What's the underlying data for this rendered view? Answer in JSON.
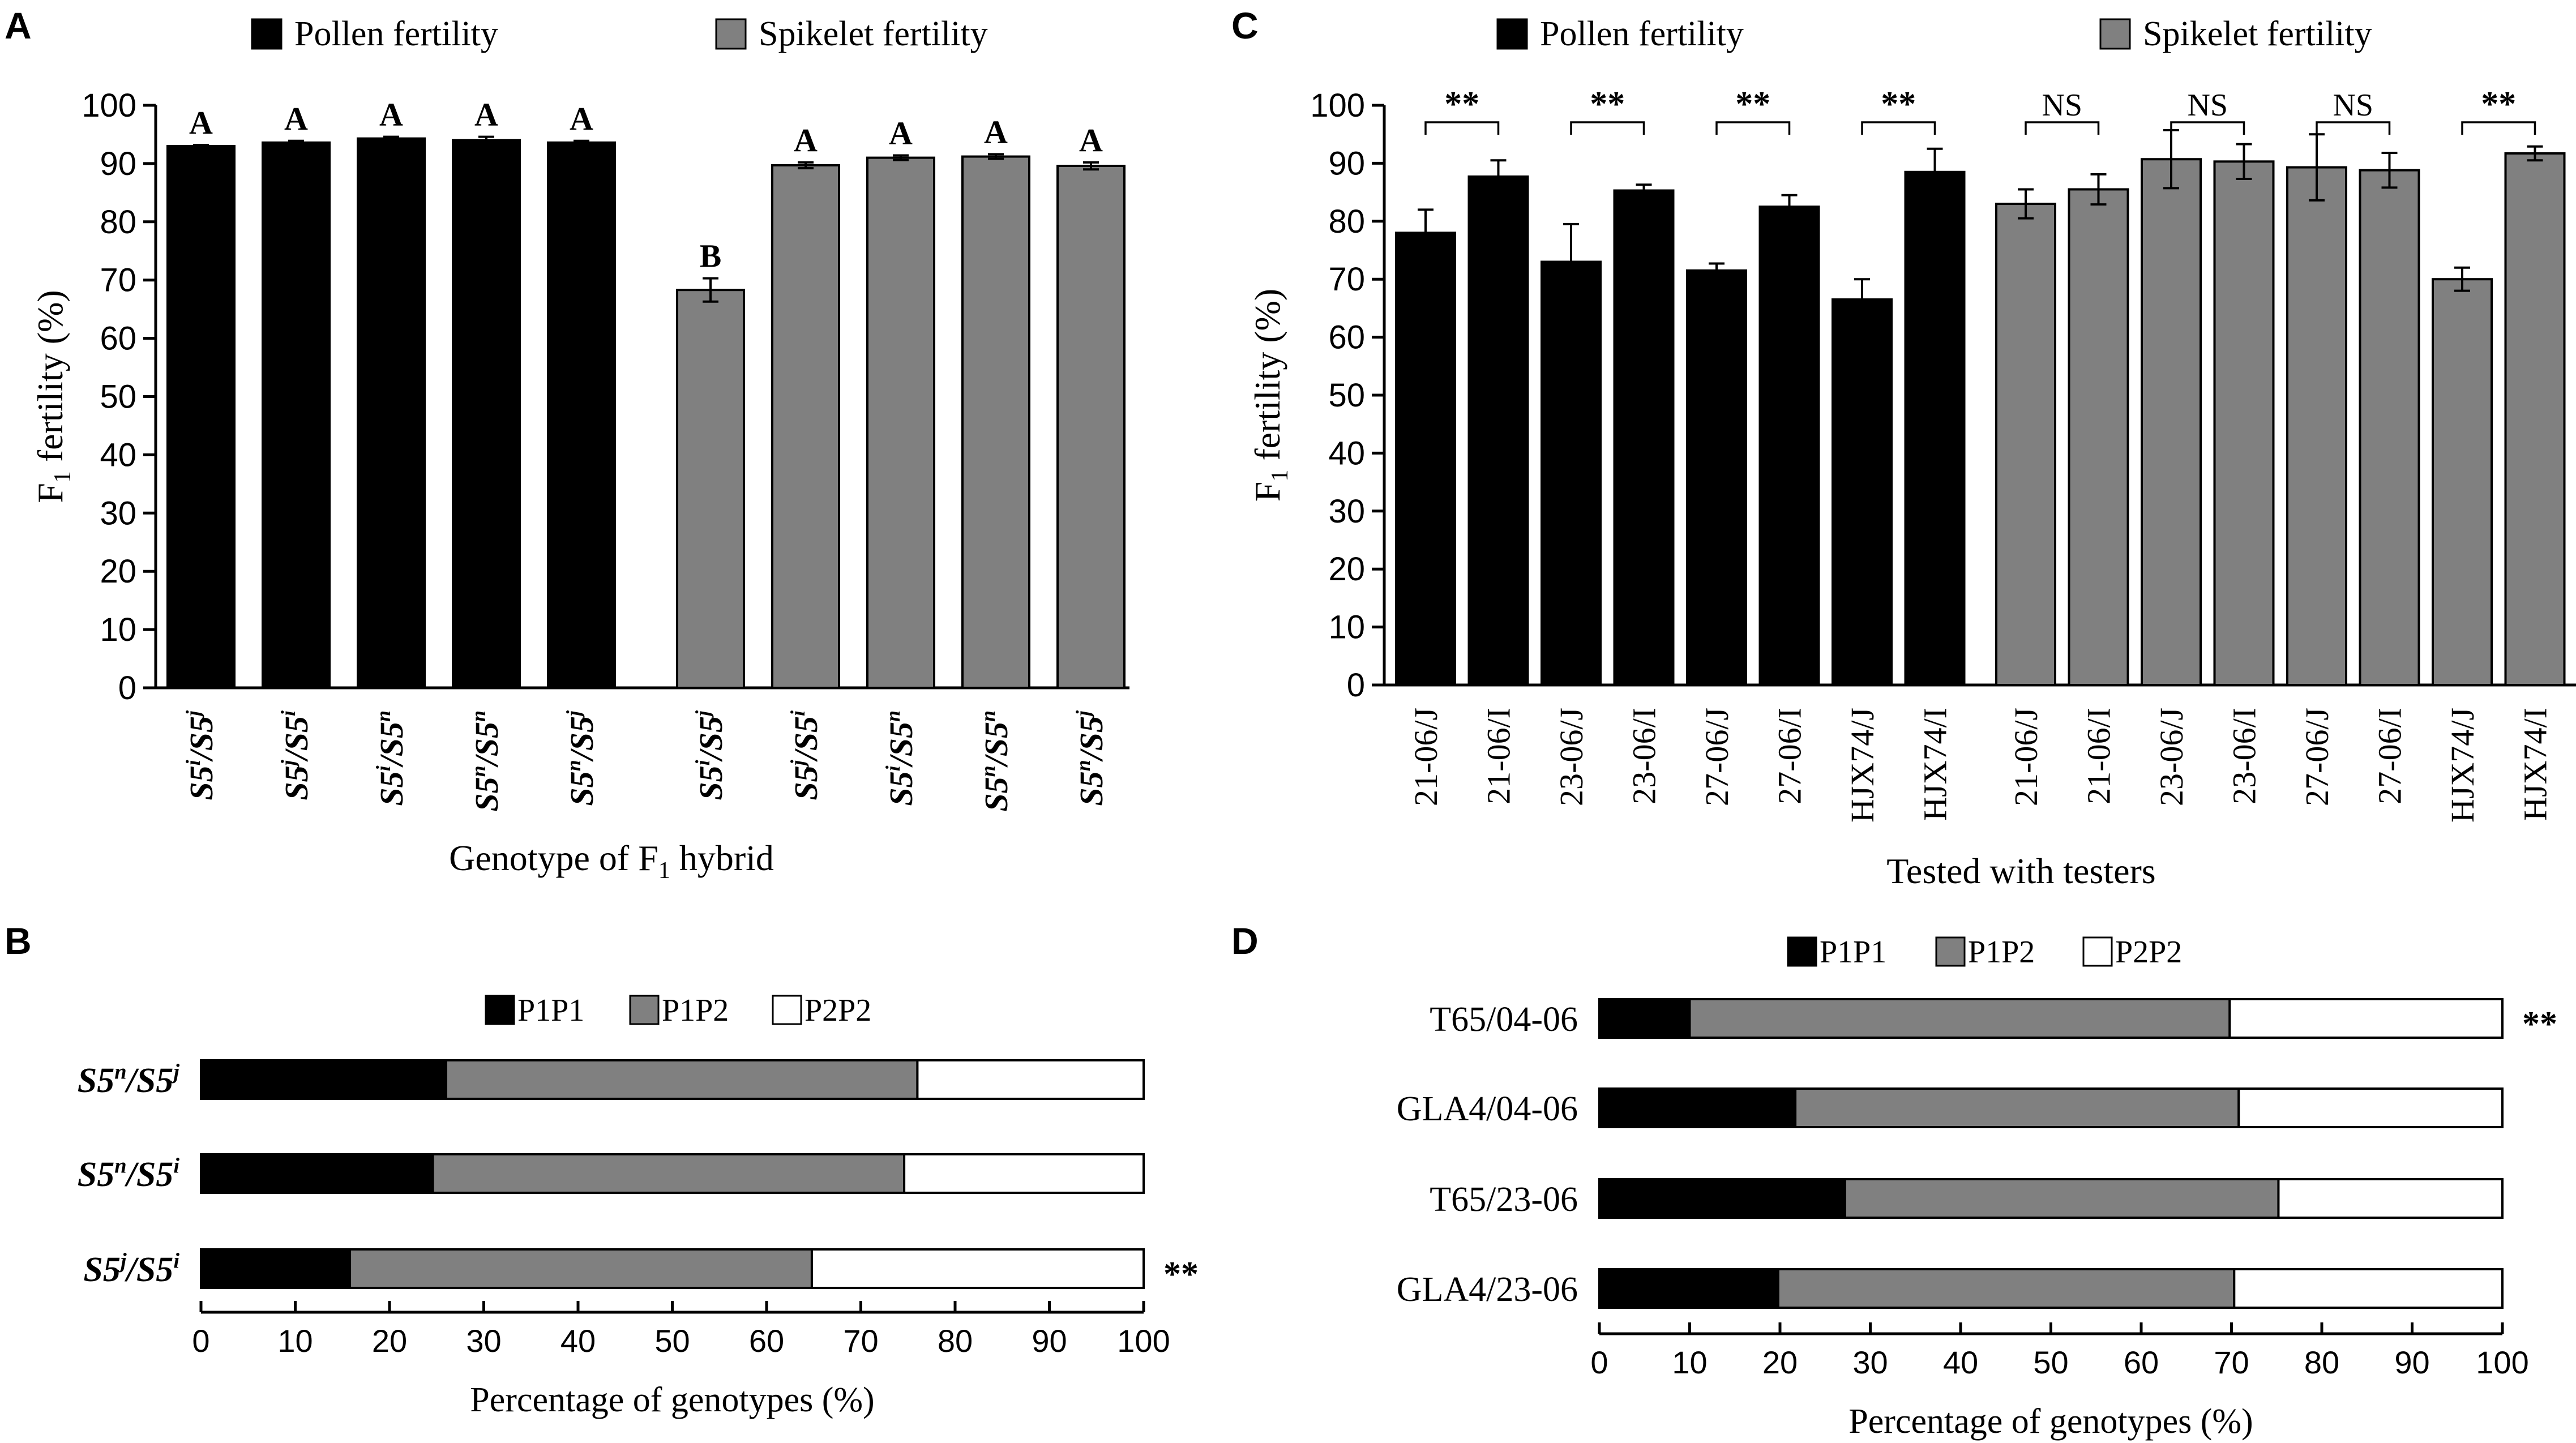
{
  "chart_data": [
    {
      "panel": "A",
      "type": "bar",
      "ylabel": "F1 fertility (%)",
      "ylabel_main": "F",
      "ylabel_sub": "1",
      "ylabel_rest": " fertility (%)",
      "xlabel": "Genotype of F1 hybrid",
      "xlabel_main": "Genotype of F",
      "xlabel_sub": "1",
      "xlabel_rest": " hybrid",
      "ylim": [
        0,
        100
      ],
      "yticks": [
        0,
        10,
        20,
        30,
        40,
        50,
        60,
        70,
        80,
        90,
        100
      ],
      "legend": [
        {
          "label": "Pollen fertility",
          "color": "#000000"
        },
        {
          "label": "Spikelet fertility",
          "color": "#808080"
        }
      ],
      "groups": [
        {
          "name": "Pollen fertility",
          "color": "#000000",
          "categories": [
            {
              "a": "S5",
              "as": "i",
              "b": "/S5",
              "bs": "j"
            },
            {
              "a": "S5",
              "as": "j",
              "b": "/S5",
              "bs": "i"
            },
            {
              "a": "S5",
              "as": "i",
              "b": "/S5",
              "bs": "n"
            },
            {
              "a": "S5",
              "as": "n",
              "b": "/S5",
              "bs": "n"
            },
            {
              "a": "S5",
              "as": "n",
              "b": "/S5",
              "bs": "j"
            }
          ],
          "values": [
            93.0,
            93.6,
            94.3,
            94.0,
            93.6
          ],
          "errors": [
            0.2,
            0.3,
            0.3,
            0.6,
            0.3
          ],
          "letters": [
            "A",
            "A",
            "A",
            "A",
            "A"
          ]
        },
        {
          "name": "Spikelet fertility",
          "color": "#808080",
          "categories": [
            {
              "a": "S5",
              "as": "i",
              "b": "/S5",
              "bs": "j"
            },
            {
              "a": "S5",
              "as": "j",
              "b": "/S5",
              "bs": "i"
            },
            {
              "a": "S5",
              "as": "i",
              "b": "/S5",
              "bs": "n"
            },
            {
              "a": "S5",
              "as": "n",
              "b": "/S5",
              "bs": "n"
            },
            {
              "a": "S5",
              "as": "n",
              "b": "/S5",
              "bs": "j"
            }
          ],
          "values": [
            68.3,
            89.7,
            91.0,
            91.2,
            89.6
          ],
          "errors": [
            2.0,
            0.5,
            0.4,
            0.4,
            0.6
          ],
          "letters": [
            "B",
            "A",
            "A",
            "A",
            "A"
          ]
        }
      ]
    },
    {
      "panel": "B",
      "type": "bar",
      "orientation": "horizontal-stacked",
      "xlabel": "Percentage of genotypes (%)",
      "xlim": [
        0,
        100
      ],
      "xticks": [
        0,
        10,
        20,
        30,
        40,
        50,
        60,
        70,
        80,
        90,
        100
      ],
      "legend": [
        {
          "label": "P1P1",
          "color": "#000000"
        },
        {
          "label": "P1P2",
          "color": "#808080"
        },
        {
          "label": "P2P2",
          "color": "#ffffff"
        }
      ],
      "rows": [
        {
          "a": "S5",
          "as": "n",
          "b": "/S5",
          "bs": "j",
          "values": [
            26.0,
            50.0,
            24.0
          ],
          "sig": ""
        },
        {
          "a": "S5",
          "as": "n",
          "b": "/S5",
          "bs": "i",
          "values": [
            24.6,
            50.0,
            25.4
          ],
          "sig": ""
        },
        {
          "a": "S5",
          "as": "j",
          "b": "/S5",
          "bs": "i",
          "values": [
            15.8,
            49.0,
            35.2
          ],
          "sig": "**"
        }
      ]
    },
    {
      "panel": "C",
      "type": "bar",
      "ylabel": "F1 fertility (%)",
      "ylabel_main": "F",
      "ylabel_sub": "1",
      "ylabel_rest": " fertility (%)",
      "xlabel": "Tested with testers",
      "ylim": [
        0,
        100
      ],
      "yticks": [
        0,
        10,
        20,
        30,
        40,
        50,
        60,
        70,
        80,
        90,
        100
      ],
      "legend": [
        {
          "label": "Pollen fertility",
          "color": "#000000"
        },
        {
          "label": "Spikelet fertility",
          "color": "#808080"
        }
      ],
      "groups": [
        {
          "name": "Pollen fertility",
          "color": "#000000",
          "categories": [
            "21-06/J",
            "21-06/I",
            "23-06/J",
            "23-06/I",
            "27-06/J",
            "27-06/I",
            "HJX74/J",
            "HJX74/I"
          ],
          "values": [
            78.0,
            87.7,
            73.0,
            85.3,
            71.5,
            82.5,
            66.5,
            88.5
          ],
          "errors": [
            4.0,
            2.8,
            6.5,
            1.0,
            1.2,
            2.0,
            3.5,
            4.0
          ],
          "pair_labels": [
            "**",
            "**",
            "**",
            "**"
          ]
        },
        {
          "name": "Spikelet fertility",
          "color": "#808080",
          "categories": [
            "21-06/J",
            "21-06/I",
            "23-06/J",
            "23-06/I",
            "27-06/J",
            "27-06/I",
            "HJX74/J",
            "HJX74/I"
          ],
          "values": [
            83.0,
            85.5,
            90.7,
            90.3,
            89.3,
            88.8,
            70.0,
            91.7
          ],
          "errors": [
            2.5,
            2.6,
            5.0,
            3.0,
            5.7,
            3.0,
            2.0,
            1.2
          ],
          "pair_labels": [
            "NS",
            "NS",
            "NS",
            "**"
          ]
        }
      ]
    },
    {
      "panel": "D",
      "type": "bar",
      "orientation": "horizontal-stacked",
      "xlabel": "Percentage of genotypes (%)",
      "xlim": [
        0,
        100
      ],
      "xticks": [
        0,
        10,
        20,
        30,
        40,
        50,
        60,
        70,
        80,
        90,
        100
      ],
      "legend": [
        {
          "label": "P1P1",
          "color": "#000000"
        },
        {
          "label": "P1P2",
          "color": "#808080"
        },
        {
          "label": "P2P2",
          "color": "#ffffff"
        }
      ],
      "rows": [
        {
          "label": "T65/04-06",
          "values": [
            10.0,
            59.8,
            30.2
          ],
          "sig": "**"
        },
        {
          "label": "GLA4/04-06",
          "values": [
            21.7,
            49.1,
            29.2
          ],
          "sig": ""
        },
        {
          "label": "T65/23-06",
          "values": [
            27.2,
            48.0,
            24.8
          ],
          "sig": ""
        },
        {
          "label": "GLA4/23-06",
          "values": [
            19.8,
            50.5,
            29.7
          ],
          "sig": ""
        }
      ]
    }
  ]
}
